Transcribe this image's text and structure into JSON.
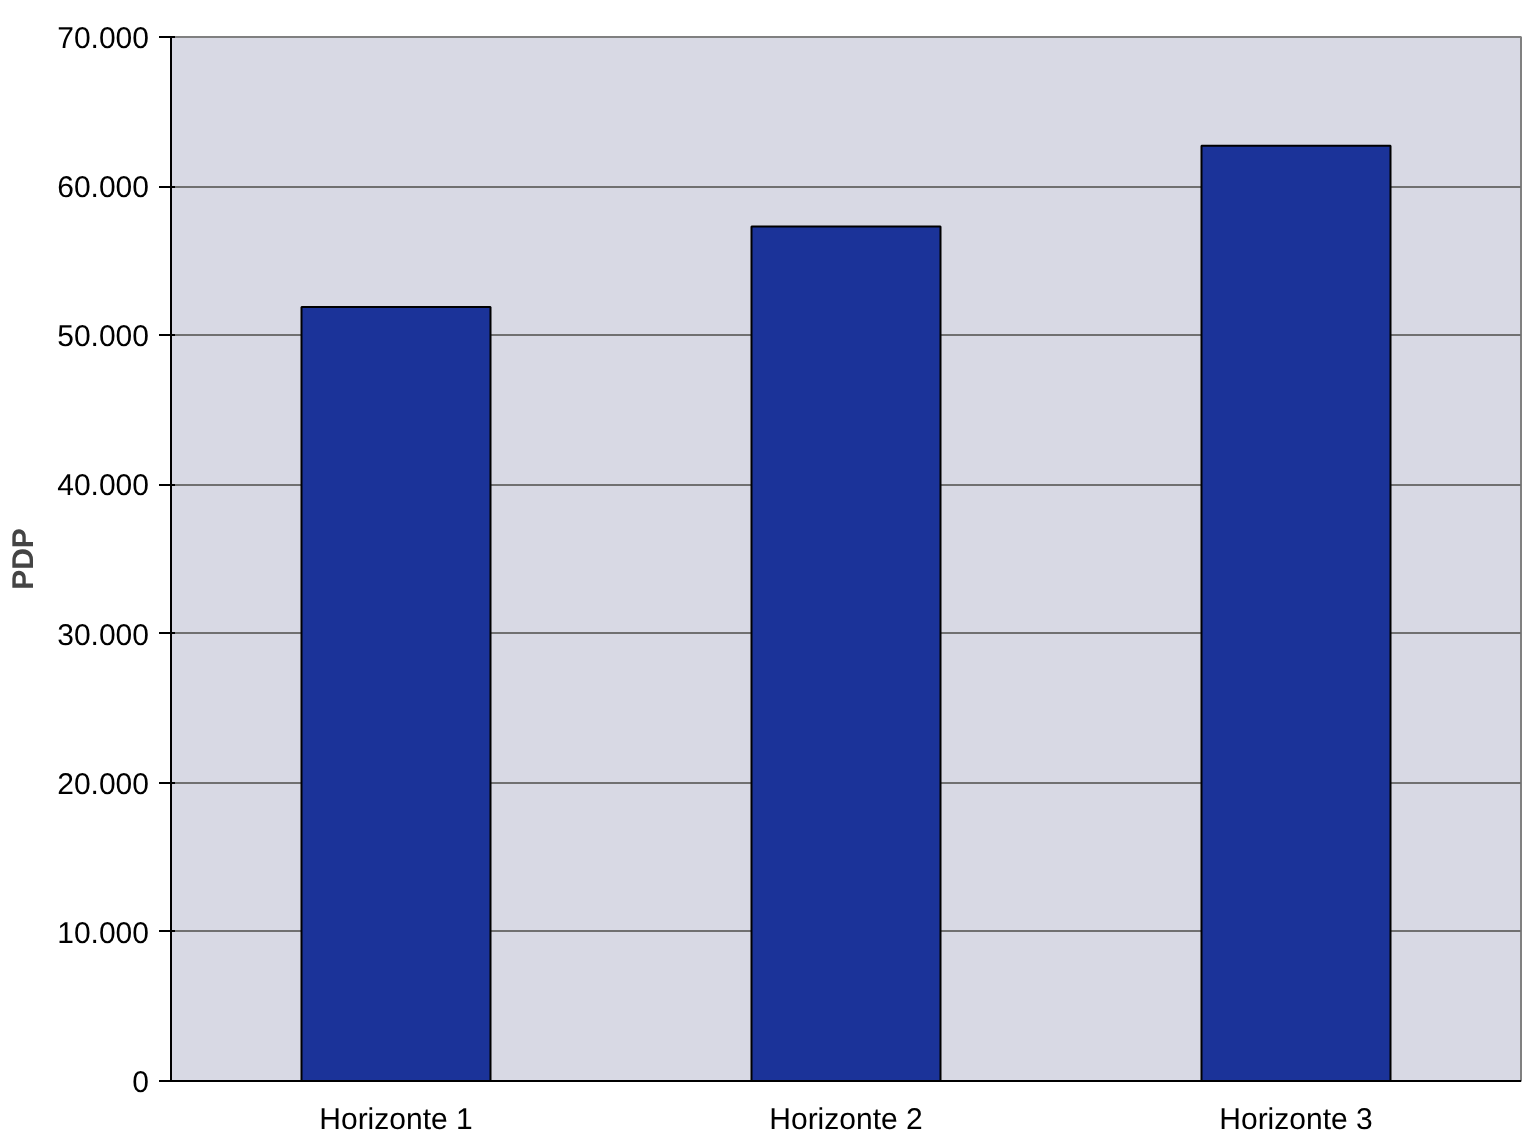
{
  "chart_data": {
    "type": "bar",
    "ylabel": "PDP",
    "categories": [
      "Horizonte 1",
      "Horizonte 2",
      "Horizonte 3"
    ],
    "values": [
      51900,
      57300,
      62700
    ],
    "color": "#1b3399",
    "ylim": [
      0,
      70000
    ],
    "yticks": [
      {
        "value": 0,
        "label": "0"
      },
      {
        "value": 10000,
        "label": "10.000"
      },
      {
        "value": 20000,
        "label": "20.000"
      },
      {
        "value": 30000,
        "label": "30.000"
      },
      {
        "value": 40000,
        "label": "40.000"
      },
      {
        "value": 50000,
        "label": "50.000"
      },
      {
        "value": 60000,
        "label": "60.000"
      },
      {
        "value": 70000,
        "label": "70.000"
      }
    ],
    "grid": "y"
  }
}
